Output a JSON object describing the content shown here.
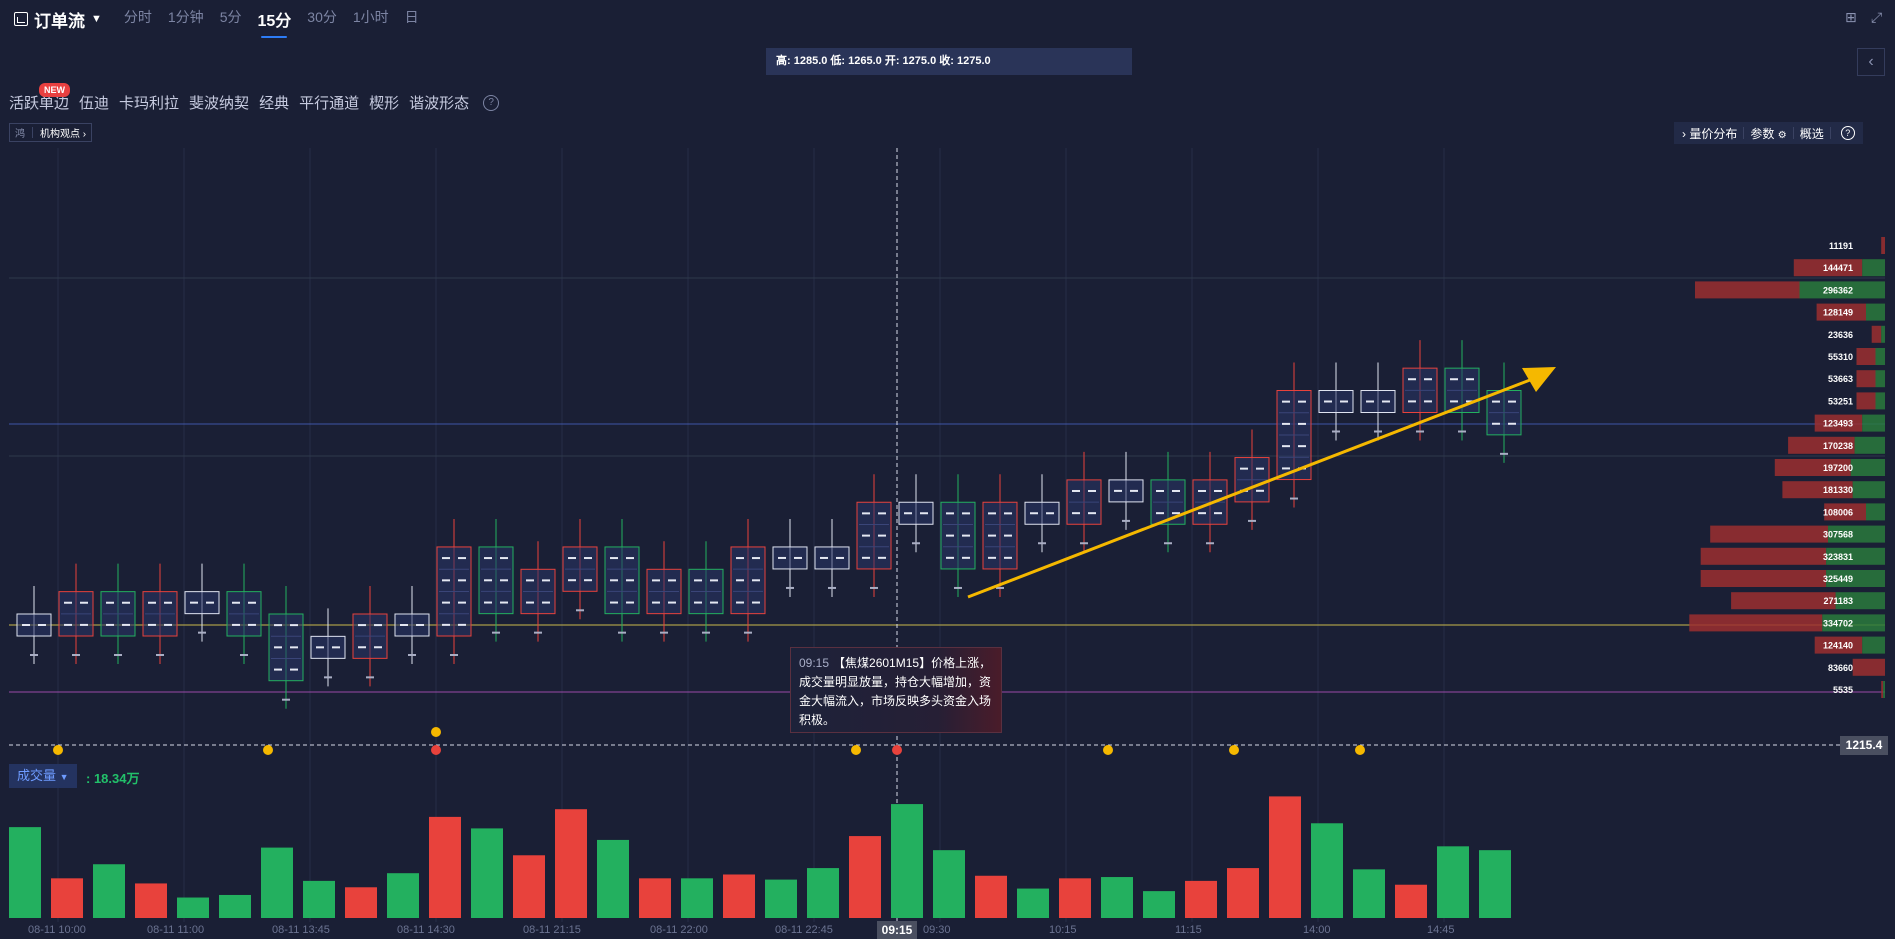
{
  "header": {
    "title": "订单流",
    "tabs": [
      {
        "label": "分时",
        "active": false
      },
      {
        "label": "1分钟",
        "active": false
      },
      {
        "label": "5分",
        "active": false
      },
      {
        "label": "15分",
        "active": true
      },
      {
        "label": "30分",
        "active": false
      },
      {
        "label": "1小时",
        "active": false
      },
      {
        "label": "日",
        "active": false
      }
    ]
  },
  "ohlc_text": "高: 1285.0 低: 1265.0 开: 1275.0 收: 1275.0",
  "tools": {
    "new_badge": "NEW",
    "items": [
      "活跃单边",
      "伍迪",
      "卡玛利拉",
      "斐波纳契",
      "经典",
      "平行通道",
      "楔形",
      "谐波形态"
    ],
    "help": "?"
  },
  "institution": {
    "icon_label": "鸿",
    "label": "机构观点 ›"
  },
  "right_toolbar": {
    "price_dist": "量价分布",
    "params": "参数",
    "overview": "概选",
    "help": "?"
  },
  "tooltip": {
    "time": "09:15",
    "text": "【焦煤2601M15】价格上涨，成交量明显放量，持仓大幅增加，资金大幅流入，市场反映多头资金入场积极。"
  },
  "volume": {
    "tag": "成交量",
    "value": ": 18.34万"
  },
  "crosshair": {
    "price": "1215.4",
    "time": "09:15"
  },
  "x_labels": [
    "08-11 10:00",
    "08-11 11:00",
    "08-11 13:45",
    "08-11 14:30",
    "08-11 21:15",
    "08-11 22:00",
    "08-11 22:45",
    "09:30",
    "10:15",
    "11:15",
    "14:00",
    "14:45"
  ],
  "colors": {
    "up": "#e8423c",
    "down": "#23b05f",
    "bg": "#1a1f35",
    "accent": "#2d7cf6",
    "arrow": "#f5b800"
  },
  "chart_data": {
    "type": "bar",
    "volume_bars": [
      {
        "color": "green",
        "value": 0.71
      },
      {
        "color": "red",
        "value": 0.31
      },
      {
        "color": "green",
        "value": 0.42
      },
      {
        "color": "red",
        "value": 0.27
      },
      {
        "color": "green",
        "value": 0.16
      },
      {
        "color": "green",
        "value": 0.18
      },
      {
        "color": "green",
        "value": 0.55
      },
      {
        "color": "green",
        "value": 0.29
      },
      {
        "color": "red",
        "value": 0.24
      },
      {
        "color": "green",
        "value": 0.35
      },
      {
        "color": "red",
        "value": 0.79
      },
      {
        "color": "green",
        "value": 0.7
      },
      {
        "color": "red",
        "value": 0.49
      },
      {
        "color": "red",
        "value": 0.85
      },
      {
        "color": "green",
        "value": 0.61
      },
      {
        "color": "red",
        "value": 0.31
      },
      {
        "color": "green",
        "value": 0.31
      },
      {
        "color": "red",
        "value": 0.34
      },
      {
        "color": "green",
        "value": 0.3
      },
      {
        "color": "green",
        "value": 0.39
      },
      {
        "color": "red",
        "value": 0.64
      },
      {
        "color": "green",
        "value": 0.89
      },
      {
        "color": "green",
        "value": 0.53
      },
      {
        "color": "red",
        "value": 0.33
      },
      {
        "color": "green",
        "value": 0.23
      },
      {
        "color": "red",
        "value": 0.31
      },
      {
        "color": "green",
        "value": 0.32
      },
      {
        "color": "green",
        "value": 0.21
      },
      {
        "color": "red",
        "value": 0.29
      },
      {
        "color": "red",
        "value": 0.39
      },
      {
        "color": "red",
        "value": 0.95
      },
      {
        "color": "green",
        "value": 0.74
      },
      {
        "color": "green",
        "value": 0.38
      },
      {
        "color": "red",
        "value": 0.26
      },
      {
        "color": "green",
        "value": 0.56
      },
      {
        "color": "green",
        "value": 0.53
      }
    ],
    "candles": [
      {
        "dir": "flat",
        "o": 1247.5,
        "c": 1247.5
      },
      {
        "dir": "up",
        "o": 1247.5,
        "c": 1252.5
      },
      {
        "dir": "down",
        "o": 1252.5,
        "c": 1247.5
      },
      {
        "dir": "up",
        "o": 1247.5,
        "c": 1252.5
      },
      {
        "dir": "flat",
        "o": 1252.5,
        "c": 1252.5
      },
      {
        "dir": "down",
        "o": 1252.5,
        "c": 1247.5
      },
      {
        "dir": "down",
        "o": 1247.5,
        "c": 1237.5
      },
      {
        "dir": "flat",
        "o": 1242.5,
        "c": 1242.5
      },
      {
        "dir": "up",
        "o": 1242.5,
        "c": 1247.5
      },
      {
        "dir": "flat",
        "o": 1247.5,
        "c": 1247.5
      },
      {
        "dir": "up",
        "o": 1247.5,
        "c": 1262.5
      },
      {
        "dir": "down",
        "o": 1262.5,
        "c": 1252.5
      },
      {
        "dir": "up",
        "o": 1252.5,
        "c": 1257.5
      },
      {
        "dir": "up",
        "o": 1257.5,
        "c": 1262.5
      },
      {
        "dir": "down",
        "o": 1262.5,
        "c": 1252.5
      },
      {
        "dir": "up",
        "o": 1252.5,
        "c": 1257.5
      },
      {
        "dir": "down",
        "o": 1257.5,
        "c": 1252.5
      },
      {
        "dir": "up",
        "o": 1252.5,
        "c": 1262.5
      },
      {
        "dir": "flat",
        "o": 1262.5,
        "c": 1262.5
      },
      {
        "dir": "flat",
        "o": 1262.5,
        "c": 1262.5
      },
      {
        "dir": "up",
        "o": 1262.5,
        "c": 1272.5
      },
      {
        "dir": "flat",
        "o": 1272.5,
        "c": 1272.5
      },
      {
        "dir": "down",
        "o": 1272.5,
        "c": 1262.5
      },
      {
        "dir": "up",
        "o": 1262.5,
        "c": 1272.5
      },
      {
        "dir": "flat",
        "o": 1272.5,
        "c": 1272.5
      },
      {
        "dir": "up",
        "o": 1272.5,
        "c": 1277.5
      },
      {
        "dir": "flat",
        "o": 1277.5,
        "c": 1277.5
      },
      {
        "dir": "down",
        "o": 1277.5,
        "c": 1272.5
      },
      {
        "dir": "up",
        "o": 1272.5,
        "c": 1277.5
      },
      {
        "dir": "up",
        "o": 1277.5,
        "c": 1282.5
      },
      {
        "dir": "up",
        "o": 1282.5,
        "c": 1297.5
      },
      {
        "dir": "flat",
        "o": 1297.5,
        "c": 1297.5
      },
      {
        "dir": "flat",
        "o": 1297.5,
        "c": 1297.5
      },
      {
        "dir": "up",
        "o": 1297.5,
        "c": 1302.5
      },
      {
        "dir": "down",
        "o": 1302.5,
        "c": 1297.5
      },
      {
        "dir": "down",
        "o": 1297.5,
        "c": 1292.5
      }
    ],
    "volume_profile": [
      {
        "value": "11191",
        "bid": 0.02,
        "ask": 0.0
      },
      {
        "value": "144471",
        "bid": 0.36,
        "ask": 0.12
      },
      {
        "value": "296362",
        "bid": 0.55,
        "ask": 0.45
      },
      {
        "value": "128149",
        "bid": 0.26,
        "ask": 0.1
      },
      {
        "value": "23636",
        "bid": 0.05,
        "ask": 0.02
      },
      {
        "value": "55310",
        "bid": 0.1,
        "ask": 0.05
      },
      {
        "value": "53663",
        "bid": 0.1,
        "ask": 0.05
      },
      {
        "value": "53251",
        "bid": 0.1,
        "ask": 0.05
      },
      {
        "value": "123493",
        "bid": 0.25,
        "ask": 0.12
      },
      {
        "value": "170238",
        "bid": 0.35,
        "ask": 0.16
      },
      {
        "value": "197200",
        "bid": 0.4,
        "ask": 0.18
      },
      {
        "value": "181330",
        "bid": 0.37,
        "ask": 0.17
      },
      {
        "value": "108006",
        "bid": 0.22,
        "ask": 0.1
      },
      {
        "value": "307568",
        "bid": 0.62,
        "ask": 0.3
      },
      {
        "value": "323831",
        "bid": 0.66,
        "ask": 0.31
      },
      {
        "value": "325449",
        "bid": 0.66,
        "ask": 0.31
      },
      {
        "value": "271183",
        "bid": 0.55,
        "ask": 0.26
      },
      {
        "value": "334702",
        "bid": 0.7,
        "ask": 0.33
      },
      {
        "value": "124140",
        "bid": 0.25,
        "ask": 0.12
      },
      {
        "value": "83660",
        "bid": 0.17,
        "ask": 0.0
      },
      {
        "value": "5535",
        "bid": 0.01,
        "ask": 0.01
      }
    ]
  }
}
